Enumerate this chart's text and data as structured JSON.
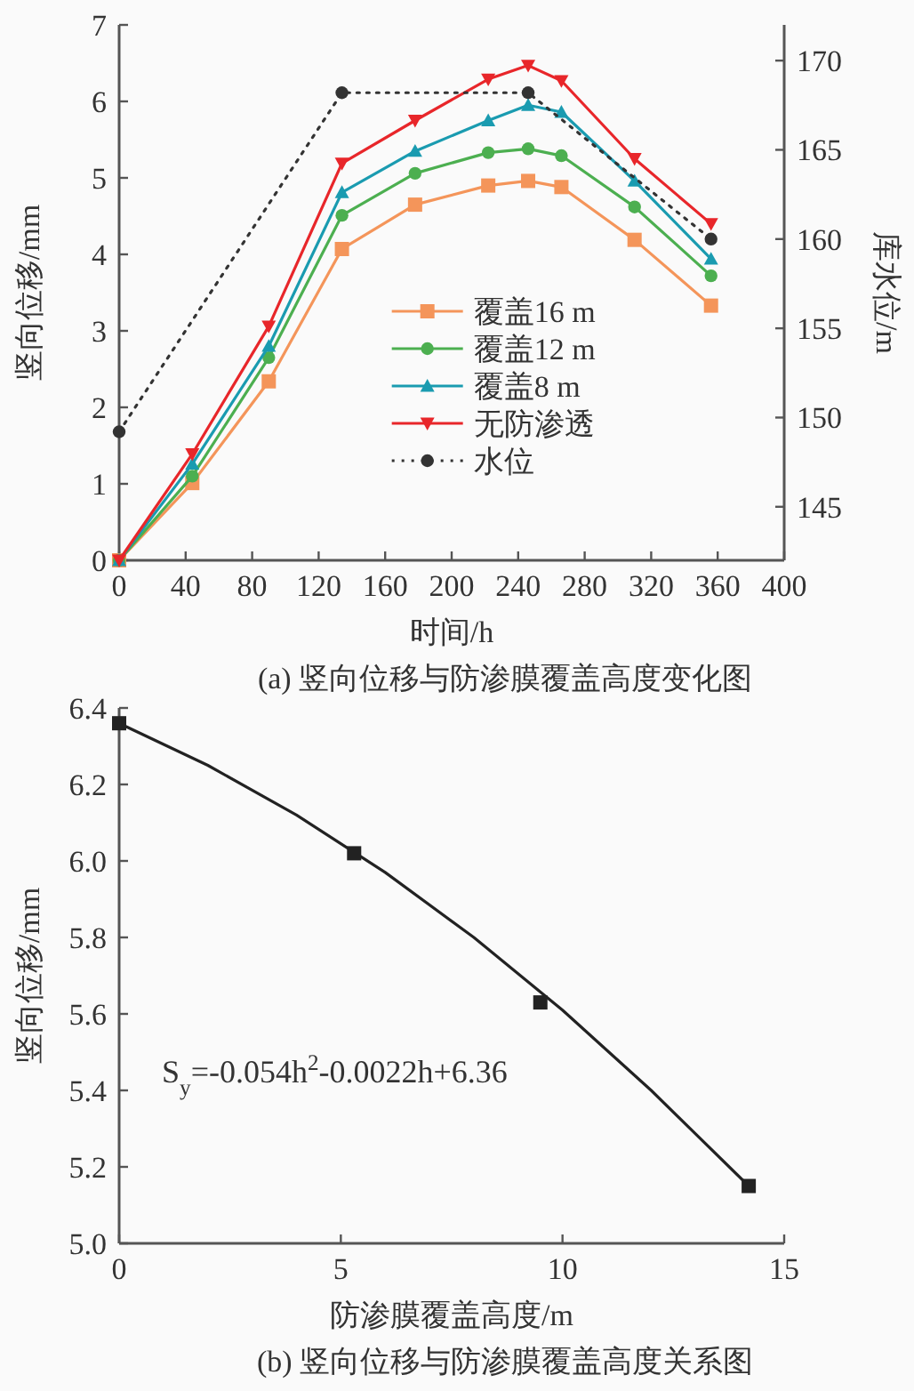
{
  "chart_data": [
    {
      "type": "line",
      "xlabel": "时间/h",
      "ylabel": "竖向位移/mm",
      "y2label": "库水位/m",
      "xlim": [
        0,
        400
      ],
      "xticks": [
        0,
        40,
        80,
        120,
        160,
        200,
        240,
        280,
        320,
        360,
        400
      ],
      "ylim": [
        0,
        7
      ],
      "yticks": [
        0,
        1,
        2,
        3,
        4,
        5,
        6,
        7
      ],
      "y2lim": [
        142,
        172
      ],
      "y2ticks": [
        145,
        150,
        155,
        160,
        165,
        170
      ],
      "x": [
        0,
        44,
        90,
        134,
        178,
        222,
        246,
        266,
        310,
        356
      ],
      "series": [
        {
          "name": "覆盖16 m",
          "color": "#f4955a",
          "marker": "square",
          "values": [
            0,
            1.01,
            2.34,
            4.07,
            4.65,
            4.9,
            4.96,
            4.88,
            4.19,
            3.33
          ]
        },
        {
          "name": "覆盖12 m",
          "color": "#4caf50",
          "marker": "circle",
          "values": [
            0,
            1.1,
            2.65,
            4.51,
            5.06,
            5.33,
            5.38,
            5.29,
            4.62,
            3.72
          ]
        },
        {
          "name": "覆盖8 m",
          "color": "#1a9bb0",
          "marker": "triangle",
          "values": [
            0,
            1.26,
            2.8,
            4.81,
            5.35,
            5.75,
            5.95,
            5.86,
            4.96,
            3.94
          ]
        },
        {
          "name": "无防渗透",
          "color": "#e8262a",
          "marker": "triangle_down",
          "values": [
            0,
            1.39,
            3.06,
            5.19,
            5.75,
            6.29,
            6.47,
            6.27,
            5.25,
            4.4
          ]
        },
        {
          "name": "水位",
          "color": "#333333",
          "marker": "circle",
          "line_style": "dotted",
          "axis": "y2",
          "x": [
            0,
            134,
            246,
            356
          ],
          "values": [
            149.2,
            168.2,
            168.2,
            160.0
          ]
        }
      ],
      "legend": "bottom",
      "grid": false,
      "annotations": [
        "(a) 竖向位移与防渗膜覆盖高度变化图"
      ]
    },
    {
      "type": "scatter",
      "xlabel": "防渗膜覆盖高度/m",
      "ylabel": "竖向位移/mm",
      "xlim": [
        0,
        15
      ],
      "xticks": [
        0,
        5,
        10,
        15
      ],
      "ylim": [
        5.0,
        6.4
      ],
      "yticks": [
        {
          "value": 5.0,
          "label": "5.0"
        },
        5.2,
        5.4,
        5.6,
        5.8,
        {
          "value": 6.0,
          "label": "6.0"
        },
        6.2,
        6.4
      ],
      "series": [
        {
          "type": "line",
          "color": "#222222",
          "marker": "none",
          "x": [
            0,
            2,
            4,
            6,
            8,
            10,
            12,
            14.2
          ],
          "values": [
            6.36,
            6.25,
            6.12,
            5.97,
            5.8,
            5.61,
            5.4,
            5.15
          ]
        },
        {
          "type": "scatter",
          "color": "#222222",
          "marker": "square",
          "x": [
            0,
            5.3,
            9.5,
            14.2
          ],
          "values": [
            6.36,
            6.02,
            5.63,
            5.15
          ]
        }
      ],
      "grid": false,
      "annotations": [
        "S$_{y}$=-0.054h$^{2}$-0.0022h+6.36",
        "(b) 竖向位移与防渗膜覆盖高度关系图"
      ]
    }
  ]
}
